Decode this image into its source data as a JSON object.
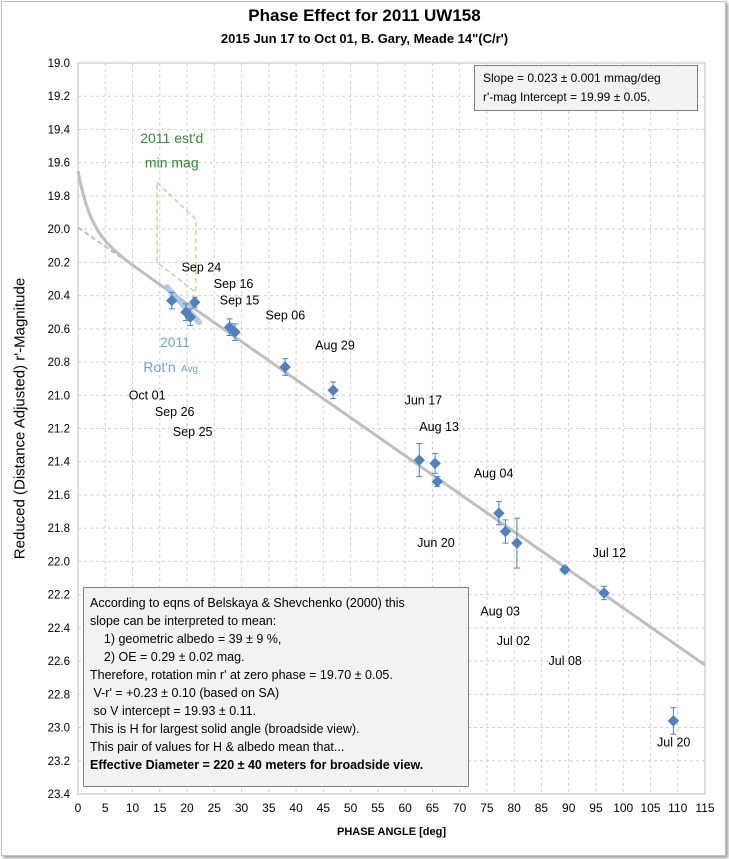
{
  "chart_data": {
    "type": "scatter",
    "title": "Phase Effect for 2011 UW158",
    "subtitle": "2015 Jun 17 to Oct 01, B. Gary, Meade 14\"(C/r')",
    "xlabel": "PHASE ANGLE [deg]",
    "ylabel": "Reduced (Distance Adjusted) r'-Magnitude",
    "xlim": [
      0,
      115
    ],
    "ylim": [
      19.0,
      23.4
    ],
    "y_inverted": true,
    "grid": true,
    "x_ticks": [
      0,
      5,
      10,
      15,
      20,
      25,
      30,
      35,
      40,
      45,
      50,
      55,
      60,
      65,
      70,
      75,
      80,
      85,
      90,
      95,
      100,
      105,
      110,
      115
    ],
    "y_ticks": [
      "19.0",
      "19.2",
      "19.4",
      "19.6",
      "19.8",
      "20.0",
      "20.2",
      "20.4",
      "20.6",
      "20.8",
      "21.0",
      "21.2",
      "21.4",
      "21.6",
      "21.8",
      "22.0",
      "22.2",
      "22.4",
      "22.6",
      "22.8",
      "23.0",
      "23.2",
      "23.4"
    ],
    "colors": {
      "points": "#4f81bd",
      "fit_line": "#bfbfbf",
      "rot_avg": "#a9c4e2",
      "est_min": "#c4d79b",
      "est_min_text": "#2e8b2e",
      "rot_avg_text": "#6f9fcf"
    },
    "points": [
      {
        "x": 17.2,
        "y": 20.43,
        "err": 0.05
      },
      {
        "x": 19.8,
        "y": 20.5,
        "err": 0.05
      },
      {
        "x": 20.6,
        "y": 20.53,
        "err": 0.05
      },
      {
        "x": 21.4,
        "y": 20.44,
        "err": 0.03
      },
      {
        "x": 27.8,
        "y": 20.59,
        "err": 0.05
      },
      {
        "x": 28.8,
        "y": 20.62,
        "err": 0.05
      },
      {
        "x": 38.0,
        "y": 20.83,
        "err": 0.05
      },
      {
        "x": 46.8,
        "y": 20.97,
        "err": 0.05
      },
      {
        "x": 62.6,
        "y": 21.39,
        "err": 0.1
      },
      {
        "x": 65.5,
        "y": 21.41,
        "err": 0.06
      },
      {
        "x": 65.9,
        "y": 21.52,
        "err": 0.03
      },
      {
        "x": 77.2,
        "y": 21.71,
        "err": 0.07
      },
      {
        "x": 78.4,
        "y": 21.82,
        "err": 0.07
      },
      {
        "x": 80.5,
        "y": 21.89,
        "err": 0.15
      },
      {
        "x": 89.3,
        "y": 22.05,
        "err": 0.02
      },
      {
        "x": 96.5,
        "y": 22.19,
        "err": 0.04
      },
      {
        "x": 109.2,
        "y": 22.96,
        "err": 0.08
      }
    ],
    "fit_line": {
      "slope": 0.0229,
      "intercept": 19.99
    },
    "date_labels": [
      {
        "text": "Sep 24",
        "x": 19.0,
        "y": 20.23
      },
      {
        "text": "Sep 16",
        "x": 24.9,
        "y": 20.33
      },
      {
        "text": "Sep 15",
        "x": 26.0,
        "y": 20.43
      },
      {
        "text": "Sep 06",
        "x": 34.4,
        "y": 20.52
      },
      {
        "text": "Aug 29",
        "x": 43.5,
        "y": 20.7
      },
      {
        "text": "Oct 01",
        "x": 9.3,
        "y": 21.0
      },
      {
        "text": "Sep 26",
        "x": 14.1,
        "y": 21.1
      },
      {
        "text": "Sep 25",
        "x": 17.4,
        "y": 21.22
      },
      {
        "text": "Jun 17",
        "x": 59.9,
        "y": 21.03
      },
      {
        "text": "Aug 13",
        "x": 62.6,
        "y": 21.19
      },
      {
        "text": "Aug 04",
        "x": 72.6,
        "y": 21.47
      },
      {
        "text": "Jun 20",
        "x": 62.2,
        "y": 21.89
      },
      {
        "text": "Jul 12",
        "x": 94.4,
        "y": 21.95
      },
      {
        "text": "Aug 03",
        "x": 73.8,
        "y": 22.3
      },
      {
        "text": "Jul 02",
        "x": 76.8,
        "y": 22.48
      },
      {
        "text": "Jul 08",
        "x": 86.3,
        "y": 22.6
      },
      {
        "text": "Jul 20",
        "x": 106.2,
        "y": 23.09
      }
    ],
    "annotations": {
      "est_min": [
        "2011  est'd",
        "min mag"
      ],
      "rot_avg": [
        "2011",
        "Rot'n",
        "Avg"
      ]
    },
    "fit_box": [
      "Slope = 0.023 ± 0.001 mmag/deg",
      "r'-mag Intercept = 19.99 ± 0.05."
    ],
    "note_box": [
      "According to eqns of Belskaya & Shevchenko (2000) this",
      "slope can be interpreted to mean:",
      "    1) geometric albedo = 39 ± 9 %,",
      "    2) OE = 0.29 ± 0.02 mag.",
      "Therefore, rotation min r' at zero phase = 19.70 ± 0.05.",
      " V-r' = +0.23 ± 0.10 (based on SA)",
      " so V intercept = 19.93 ± 0.11.",
      "This is H for largest solid angle (broadside view).",
      "This pair of values for H & albedo mean that...",
      "Effective Diameter = 220 ± 40 meters for broadside view."
    ]
  }
}
